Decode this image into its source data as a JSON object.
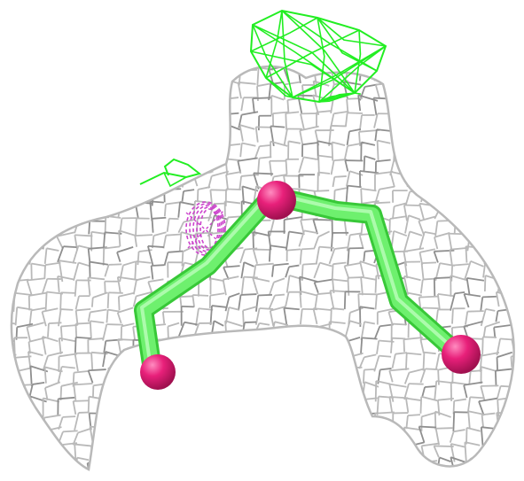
{
  "scene": {
    "background": "#ffffff",
    "colors": {
      "mesh": "#b9b9b9",
      "mesh_dark": "#8f8f8f",
      "positive_mesh": "#22ee22",
      "negative_mesh": "#cc44cc",
      "ligand_stick": "#6ef06e",
      "ligand_stick_dark": "#38c838",
      "atom": "#e8207a",
      "atom_highlight": "#ff7bb5"
    },
    "objects": [
      {
        "name": "electron-density-mesh",
        "color": "grey"
      },
      {
        "name": "difference-density-positive",
        "color": "green"
      },
      {
        "name": "difference-density-negative",
        "color": "magenta"
      },
      {
        "name": "ligand-bonds",
        "color": "green"
      },
      {
        "name": "ligand-atoms",
        "color": "pink"
      }
    ]
  }
}
